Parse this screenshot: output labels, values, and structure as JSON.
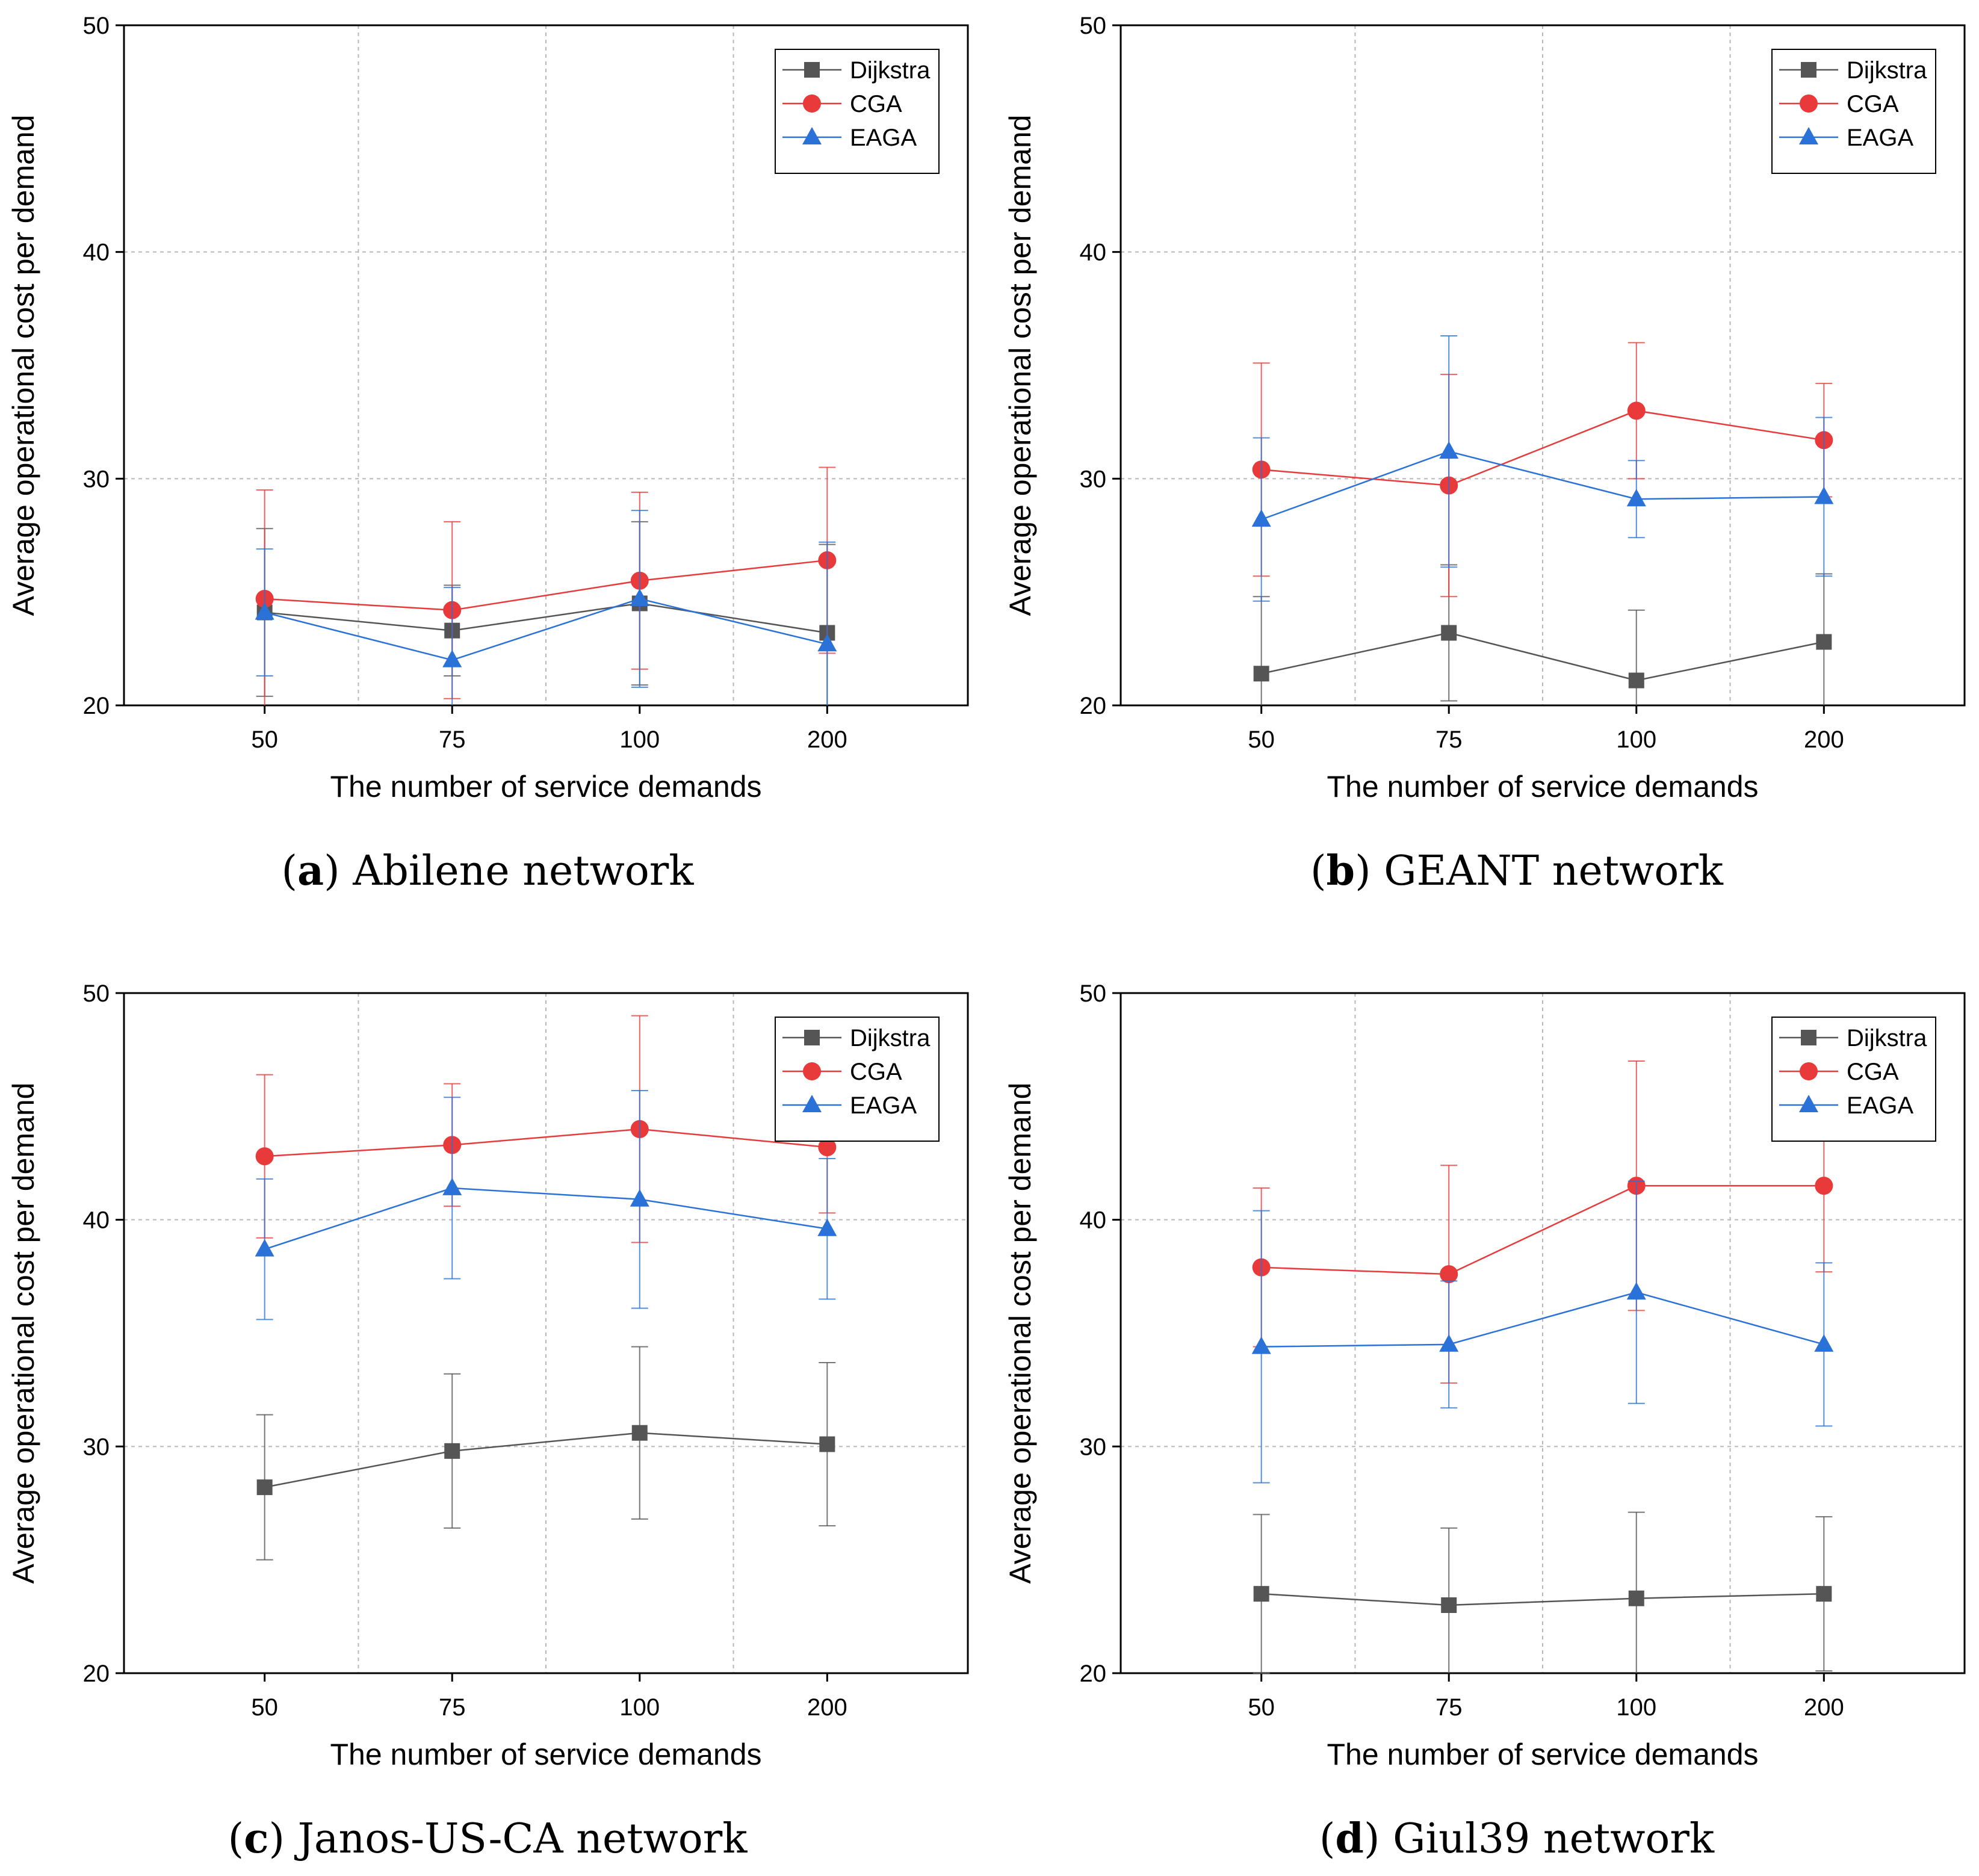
{
  "figure": {
    "panels_order": [
      "a",
      "b",
      "c",
      "d"
    ]
  },
  "colors": {
    "dijkstra": "#555555",
    "cga": "#e83a3a",
    "eaga": "#2a72d8",
    "grid": "#b8b8b8",
    "axis": "#000000"
  },
  "chart_data": [
    {
      "id": "a",
      "type": "line",
      "caption_letter": "a",
      "caption_text": "Abilene network",
      "xlabel": "The number of service demands",
      "ylabel": "Average operational cost per demand",
      "categories": [
        "50",
        "75",
        "100",
        "200"
      ],
      "ylim": [
        20,
        50
      ],
      "yticks": [
        "20",
        "30",
        "40",
        "50"
      ],
      "legend_position": "top-right",
      "series": [
        {
          "name": "Dijkstra",
          "key": "dijkstra",
          "marker": "square",
          "values": [
            24.1,
            23.3,
            24.5,
            23.2
          ],
          "errors": [
            3.7,
            2.0,
            3.6,
            3.9
          ]
        },
        {
          "name": "CGA",
          "key": "cga",
          "marker": "circle",
          "values": [
            24.7,
            24.2,
            25.5,
            26.4
          ],
          "errors": [
            4.8,
            3.9,
            3.9,
            4.1
          ]
        },
        {
          "name": "EAGA",
          "key": "eaga",
          "marker": "triangle",
          "values": [
            24.1,
            22.0,
            24.7,
            22.7
          ],
          "errors": [
            2.8,
            3.2,
            3.9,
            4.5
          ]
        }
      ]
    },
    {
      "id": "b",
      "type": "line",
      "caption_letter": "b",
      "caption_text": "GEANT network",
      "xlabel": "The number of service demands",
      "ylabel": "Average operational cost per demand",
      "categories": [
        "50",
        "75",
        "100",
        "200"
      ],
      "ylim": [
        20,
        50
      ],
      "yticks": [
        "20",
        "30",
        "40",
        "50"
      ],
      "legend_position": "top-right",
      "series": [
        {
          "name": "Dijkstra",
          "key": "dijkstra",
          "marker": "square",
          "values": [
            21.4,
            23.2,
            21.1,
            22.8
          ],
          "errors": [
            3.4,
            3.0,
            3.1,
            3.0
          ]
        },
        {
          "name": "CGA",
          "key": "cga",
          "marker": "circle",
          "values": [
            30.4,
            29.7,
            33.0,
            31.7
          ],
          "errors": [
            4.7,
            4.9,
            3.0,
            2.5
          ]
        },
        {
          "name": "EAGA",
          "key": "eaga",
          "marker": "triangle",
          "values": [
            28.2,
            31.2,
            29.1,
            29.2
          ],
          "errors": [
            3.6,
            5.1,
            1.7,
            3.5
          ]
        }
      ]
    },
    {
      "id": "c",
      "type": "line",
      "caption_letter": "c",
      "caption_text": "Janos-US-CA network",
      "xlabel": "The number of service demands",
      "ylabel": "Average operational cost per demand",
      "categories": [
        "50",
        "75",
        "100",
        "200"
      ],
      "ylim": [
        20,
        50
      ],
      "yticks": [
        "20",
        "30",
        "40",
        "50"
      ],
      "legend_position": "top-right",
      "series": [
        {
          "name": "Dijkstra",
          "key": "dijkstra",
          "marker": "square",
          "values": [
            28.2,
            29.8,
            30.6,
            30.1
          ],
          "errors": [
            3.2,
            3.4,
            3.8,
            3.6
          ]
        },
        {
          "name": "CGA",
          "key": "cga",
          "marker": "circle",
          "values": [
            42.8,
            43.3,
            44.0,
            43.2
          ],
          "errors": [
            3.6,
            2.7,
            5.0,
            2.9
          ]
        },
        {
          "name": "EAGA",
          "key": "eaga",
          "marker": "triangle",
          "values": [
            38.7,
            41.4,
            40.9,
            39.6
          ],
          "errors": [
            3.1,
            4.0,
            4.8,
            3.1
          ]
        }
      ]
    },
    {
      "id": "d",
      "type": "line",
      "caption_letter": "d",
      "caption_text": "Giul39 network",
      "xlabel": "The number of service demands",
      "ylabel": "Average operational cost per demand",
      "categories": [
        "50",
        "75",
        "100",
        "200"
      ],
      "ylim": [
        20,
        50
      ],
      "yticks": [
        "20",
        "30",
        "40",
        "50"
      ],
      "legend_position": "top-right",
      "series": [
        {
          "name": "Dijkstra",
          "key": "dijkstra",
          "marker": "square",
          "values": [
            23.5,
            23.0,
            23.3,
            23.5
          ],
          "errors": [
            3.5,
            3.4,
            3.8,
            3.4
          ]
        },
        {
          "name": "CGA",
          "key": "cga",
          "marker": "circle",
          "values": [
            37.9,
            37.6,
            41.5,
            41.5
          ],
          "errors": [
            3.5,
            4.8,
            5.5,
            3.8
          ]
        },
        {
          "name": "EAGA",
          "key": "eaga",
          "marker": "triangle",
          "values": [
            34.4,
            34.5,
            36.8,
            34.5
          ],
          "errors": [
            6.0,
            2.8,
            4.9,
            3.6
          ]
        }
      ]
    }
  ]
}
